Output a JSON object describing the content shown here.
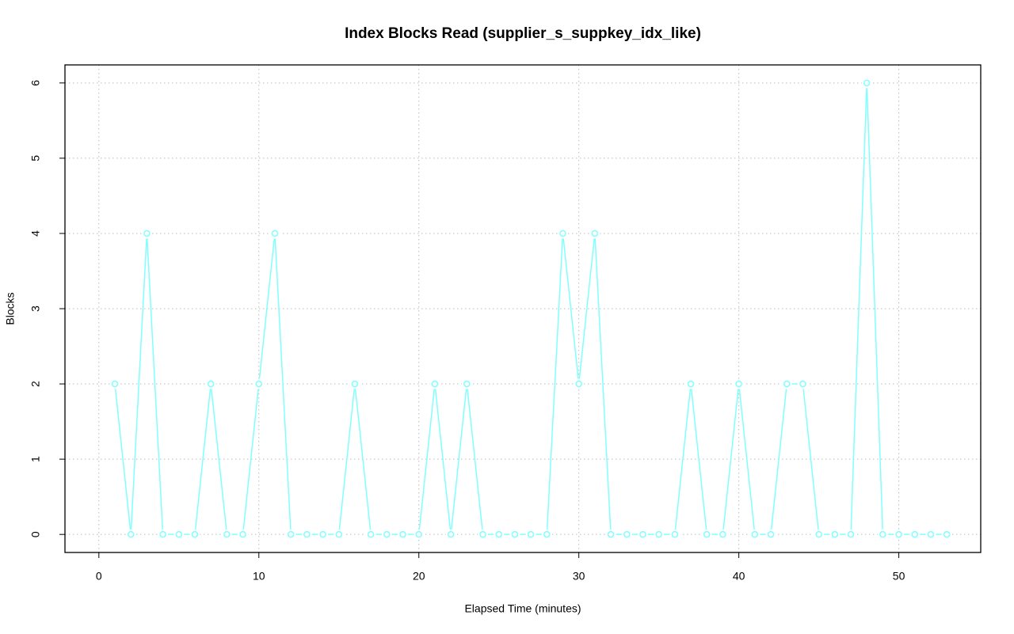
{
  "chart_data": {
    "type": "line",
    "title": "Index Blocks Read (supplier_s_suppkey_idx_like)",
    "x_label": "Elapsed Time (minutes)",
    "y_label": "Blocks",
    "x": [
      1,
      2,
      3,
      4,
      5,
      6,
      7,
      8,
      9,
      10,
      11,
      12,
      13,
      14,
      15,
      16,
      17,
      18,
      19,
      20,
      21,
      22,
      23,
      24,
      25,
      26,
      27,
      28,
      29,
      30,
      31,
      32,
      33,
      34,
      35,
      36,
      37,
      38,
      39,
      40,
      41,
      42,
      43,
      44,
      45,
      46,
      47,
      48,
      49,
      50,
      51,
      52,
      53
    ],
    "series": [
      {
        "color": "#80ffff",
        "values": [
          2,
          0,
          4,
          0,
          0,
          0,
          2,
          0,
          0,
          2,
          4,
          0,
          0,
          0,
          0,
          2,
          0,
          0,
          0,
          0,
          2,
          0,
          2,
          0,
          0,
          0,
          0,
          0,
          4,
          2,
          4,
          0,
          0,
          0,
          0,
          0,
          2,
          0,
          0,
          2,
          0,
          0,
          2,
          2,
          0,
          0,
          0,
          6,
          0,
          0,
          0,
          0,
          0
        ]
      }
    ],
    "xlim": [
      -2.12,
      55.12
    ],
    "ylim": [
      -0.24,
      6.24
    ],
    "xticks": [
      0,
      10,
      20,
      30,
      40,
      50
    ],
    "yticks": [
      0,
      1,
      2,
      3,
      4,
      5,
      6
    ],
    "grid": true
  }
}
